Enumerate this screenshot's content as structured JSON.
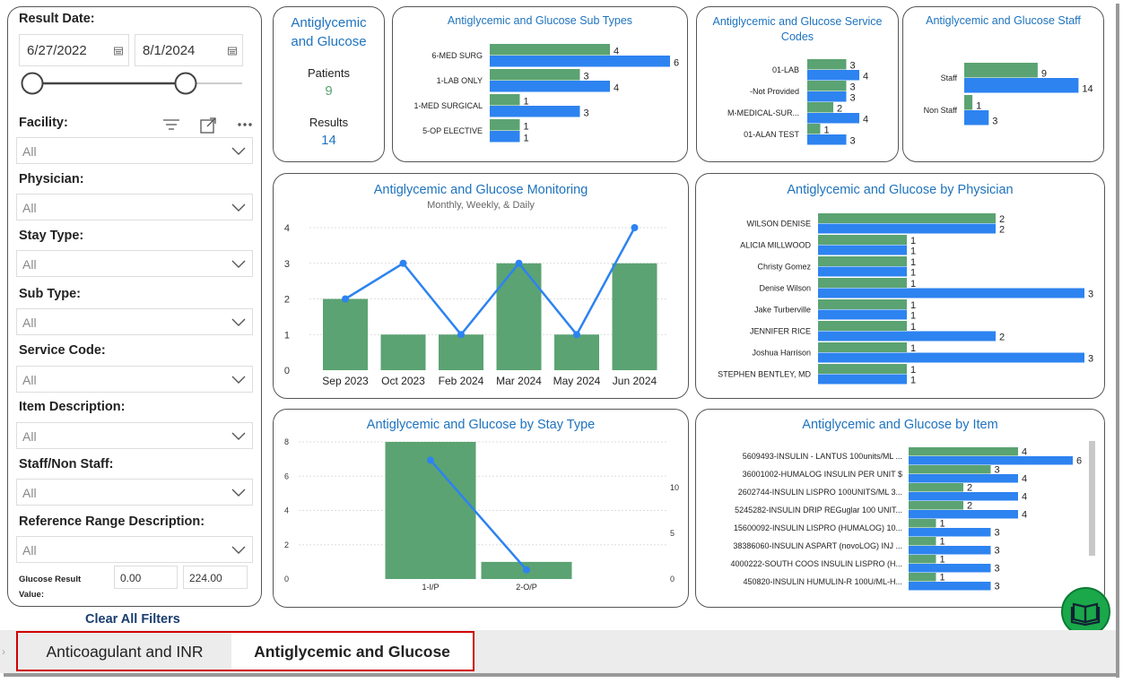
{
  "filters": {
    "result_date_label": "Result Date:",
    "date_start": "6/27/2022",
    "date_end": "8/1/2024",
    "facility_label": "Facility:",
    "physician_label": "Physician:",
    "stay_type_label": "Stay Type:",
    "sub_type_label": "Sub Type:",
    "service_code_label": "Service Code:",
    "item_description_label": "Item Description:",
    "staff_label": "Staff/Non Staff:",
    "ref_range_label": "Reference Range Description:",
    "all": "All",
    "glucose_label_1": "Glucose Result",
    "glucose_label_2": "Value:",
    "glucose_min": "0.00",
    "glucose_max": "224.00",
    "clear_all": "Clear All Filters"
  },
  "kpi": {
    "title_1": "Antiglycemic",
    "title_2": "and Glucose",
    "patients_label": "Patients",
    "patients_value": "9",
    "results_label": "Results",
    "results_value": "14"
  },
  "colors": {
    "green": "#5ba372",
    "blue": "#2d83f0",
    "title": "#1e73be"
  },
  "chart_data": [
    {
      "type": "bar",
      "title": "Antiglycemic and Glucose Sub Types",
      "categories": [
        "6-MED SURG",
        "1-LAB ONLY",
        "1-MED SURGICAL",
        "5-OP ELECTIVE"
      ],
      "series": [
        {
          "values": [
            4,
            3,
            1,
            1
          ]
        },
        {
          "values": [
            6,
            4,
            3,
            1
          ]
        }
      ]
    },
    {
      "type": "bar",
      "title_1": "Antiglycemic and Glucose Service",
      "title_2": "Codes",
      "categories": [
        "01-LAB",
        "-Not Provided",
        "M-MEDICAL-SUR...",
        "01-ALAN TEST"
      ],
      "series": [
        {
          "values": [
            3,
            3,
            2,
            1
          ]
        },
        {
          "values": [
            4,
            3,
            4,
            3
          ]
        }
      ]
    },
    {
      "type": "bar",
      "title": "Antiglycemic and Glucose Staff",
      "categories": [
        "Staff",
        "Non Staff"
      ],
      "series": [
        {
          "values": [
            9,
            1
          ]
        },
        {
          "values": [
            14,
            3
          ]
        }
      ]
    },
    {
      "type": "bar",
      "title": "Antiglycemic and Glucose Monitoring",
      "subtitle": "Monthly, Weekly, & Daily",
      "categories": [
        "Sep 2023",
        "Oct 2023",
        "Feb 2024",
        "Mar 2024",
        "May 2024",
        "Jun 2024"
      ],
      "series": [
        {
          "values": [
            2,
            1,
            1,
            3,
            1,
            3
          ]
        },
        {
          "values": [
            2,
            3,
            1,
            3,
            1,
            4
          ]
        }
      ],
      "ylim": [
        0,
        4
      ],
      "yticks": [
        "0",
        "1",
        "2",
        "3",
        "4"
      ]
    },
    {
      "type": "bar",
      "title": "Antiglycemic and Glucose by Physician",
      "categories": [
        "WILSON DENISE",
        "ALICIA MILLWOOD",
        "Christy Gomez",
        "Denise Wilson",
        "Jake Turberville",
        "JENNIFER RICE",
        "Joshua Harrison",
        "STEPHEN BENTLEY, MD"
      ],
      "series": [
        {
          "values": [
            2,
            1,
            1,
            1,
            1,
            1,
            1,
            1
          ]
        },
        {
          "values": [
            2,
            1,
            1,
            3,
            1,
            2,
            3,
            1
          ]
        }
      ]
    },
    {
      "type": "bar",
      "title": "Antiglycemic and Glucose by Stay Type",
      "categories": [
        "1-I/P",
        "2-O/P"
      ],
      "series": [
        {
          "values": [
            8,
            1
          ]
        },
        {
          "values": [
            13,
            1
          ]
        }
      ],
      "ylim": [
        0,
        8
      ],
      "yticks": [
        "0",
        "2",
        "4",
        "6",
        "8"
      ],
      "y2ticks": [
        "0",
        "5",
        "10"
      ]
    },
    {
      "type": "bar",
      "title": "Antiglycemic and Glucose by Item",
      "categories": [
        "5609493-INSULIN - LANTUS 100units/ML ...",
        "36001002-HUMALOG INSULIN PER UNIT $",
        "2602744-INSULIN LISPRO 100UNITS/ML 3...",
        "5245282-INSULIN DRIP REGuglar 100 UNIT...",
        "15600092-INSULIN LISPRO (HUMALOG) 10...",
        "38386060-INSULIN ASPART (novoLOG) INJ ...",
        "4000222-SOUTH COOS INSULIN LISPRO (H...",
        "450820-INSULIN HUMULIN-R 100U/ML-H..."
      ],
      "series": [
        {
          "values": [
            4,
            3,
            2,
            2,
            1,
            1,
            1,
            1
          ]
        },
        {
          "values": [
            6,
            4,
            4,
            4,
            3,
            3,
            3,
            3
          ]
        }
      ]
    }
  ],
  "tabs": [
    "Anticoagulant and INR",
    "Antiglycemic and Glucose"
  ]
}
